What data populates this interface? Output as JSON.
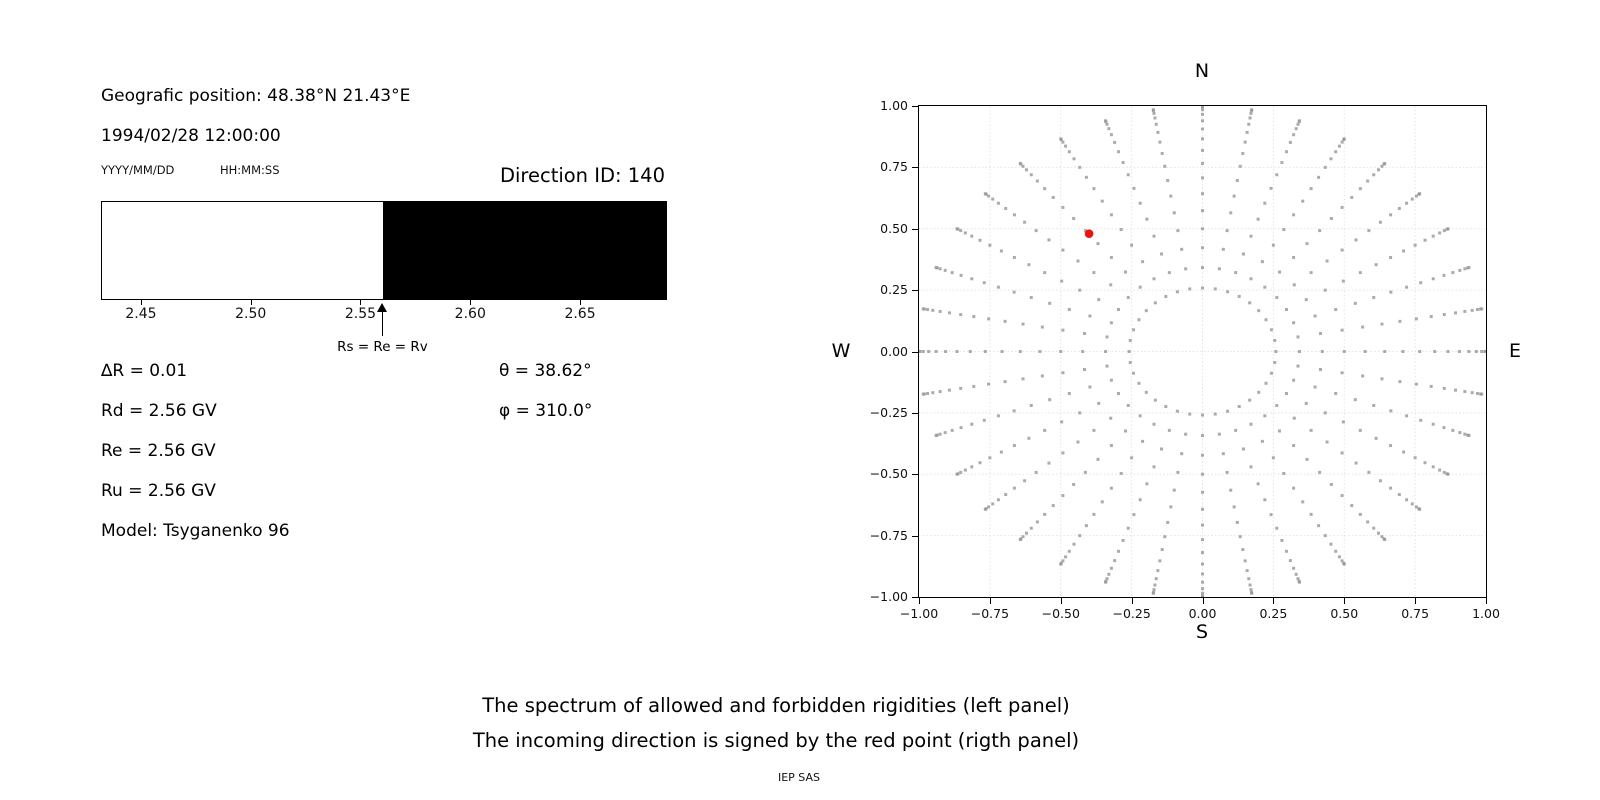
{
  "header": {
    "geo_position": "Geografic position: 48.38°N 21.43°E",
    "datetime": "1994/02/28 12:00:00",
    "date_format_label": "YYYY/MM/DD",
    "time_format_label": "HH:MM:SS",
    "direction_id": "Direction ID: 140"
  },
  "params": {
    "delta": "∆R = 0.01",
    "rd": "Rd = 2.56 GV",
    "re": "Re = 2.56 GV",
    "ru": "Ru = 2.56 GV",
    "model": "Model: Tsyganenko 96",
    "theta": "θ = 38.62°",
    "phi": "φ = 310.0°"
  },
  "captions": {
    "line1": "The spectrum of allowed and forbidden rigidities (left panel)",
    "line2": "The incoming direction is signed by the red point (rigth panel)",
    "credit": "IEP SAS"
  },
  "chart_data": [
    {
      "id": "rigidity-spectrum",
      "type": "area",
      "x_range": [
        2.4318,
        2.6887
      ],
      "regions": [
        {
          "label": "allowed",
          "from": 2.4318,
          "to": 2.56,
          "color": "#ffffff"
        },
        {
          "label": "forbidden",
          "from": 2.56,
          "to": 2.6887,
          "color": "#000000"
        }
      ],
      "xticks": [
        {
          "v": 2.45,
          "label": "2.45"
        },
        {
          "v": 2.5,
          "label": "2.50"
        },
        {
          "v": 2.55,
          "label": "2.55"
        },
        {
          "v": 2.6,
          "label": "2.60"
        },
        {
          "v": 2.65,
          "label": "2.65"
        }
      ],
      "marker": {
        "v": 2.56,
        "label": "Rs = Re = Rv"
      }
    },
    {
      "id": "incoming-direction-map",
      "type": "scatter",
      "xlim": [
        -1.0,
        1.0
      ],
      "ylim": [
        -1.0,
        1.0
      ],
      "grid": true,
      "grid_color": "#e3e3e3",
      "compass": {
        "north": "N",
        "south": "S",
        "west": "W",
        "east": "E"
      },
      "xticks": [
        {
          "v": -1.0,
          "label": "−1.00"
        },
        {
          "v": -0.75,
          "label": "−0.75"
        },
        {
          "v": -0.5,
          "label": "−0.50"
        },
        {
          "v": -0.25,
          "label": "−0.25"
        },
        {
          "v": 0.0,
          "label": "0.00"
        },
        {
          "v": 0.25,
          "label": "0.25"
        },
        {
          "v": 0.5,
          "label": "0.50"
        },
        {
          "v": 0.75,
          "label": "0.75"
        },
        {
          "v": 1.0,
          "label": "1.00"
        }
      ],
      "yticks": [
        {
          "v": 1.0,
          "label": "1.00"
        },
        {
          "v": 0.75,
          "label": "0.75"
        },
        {
          "v": 0.5,
          "label": "0.50"
        },
        {
          "v": 0.25,
          "label": "0.25"
        },
        {
          "v": 0.0,
          "label": "0.00"
        },
        {
          "v": -0.25,
          "label": "−0.25"
        },
        {
          "v": -0.5,
          "label": "−0.50"
        },
        {
          "v": -0.75,
          "label": "−0.75"
        },
        {
          "v": -1.0,
          "label": "−1.00"
        }
      ],
      "series": [
        {
          "name": "direction-grid",
          "marker": "square",
          "size": 3,
          "color": "#969696",
          "opacity": 0.8,
          "projection": "x = sin(zenith)*sin(azimuth), y = sin(zenith)*cos(azimuth)",
          "azimuths_deg": [
            0,
            10,
            20,
            30,
            40,
            50,
            60,
            70,
            80,
            90,
            100,
            110,
            120,
            130,
            140,
            150,
            160,
            170,
            180,
            190,
            200,
            210,
            220,
            230,
            240,
            250,
            260,
            270,
            280,
            290,
            300,
            310,
            320,
            330,
            340,
            350
          ],
          "zeniths_deg": [
            15,
            20,
            25,
            30,
            35,
            40,
            45,
            50,
            55,
            60,
            65,
            70,
            75,
            80,
            85,
            90
          ]
        },
        {
          "name": "incoming-direction",
          "marker": "circle",
          "size": 8.6,
          "color": "#ed1111",
          "points": [
            {
              "x": -0.4,
              "y": 0.48
            }
          ]
        }
      ]
    }
  ]
}
